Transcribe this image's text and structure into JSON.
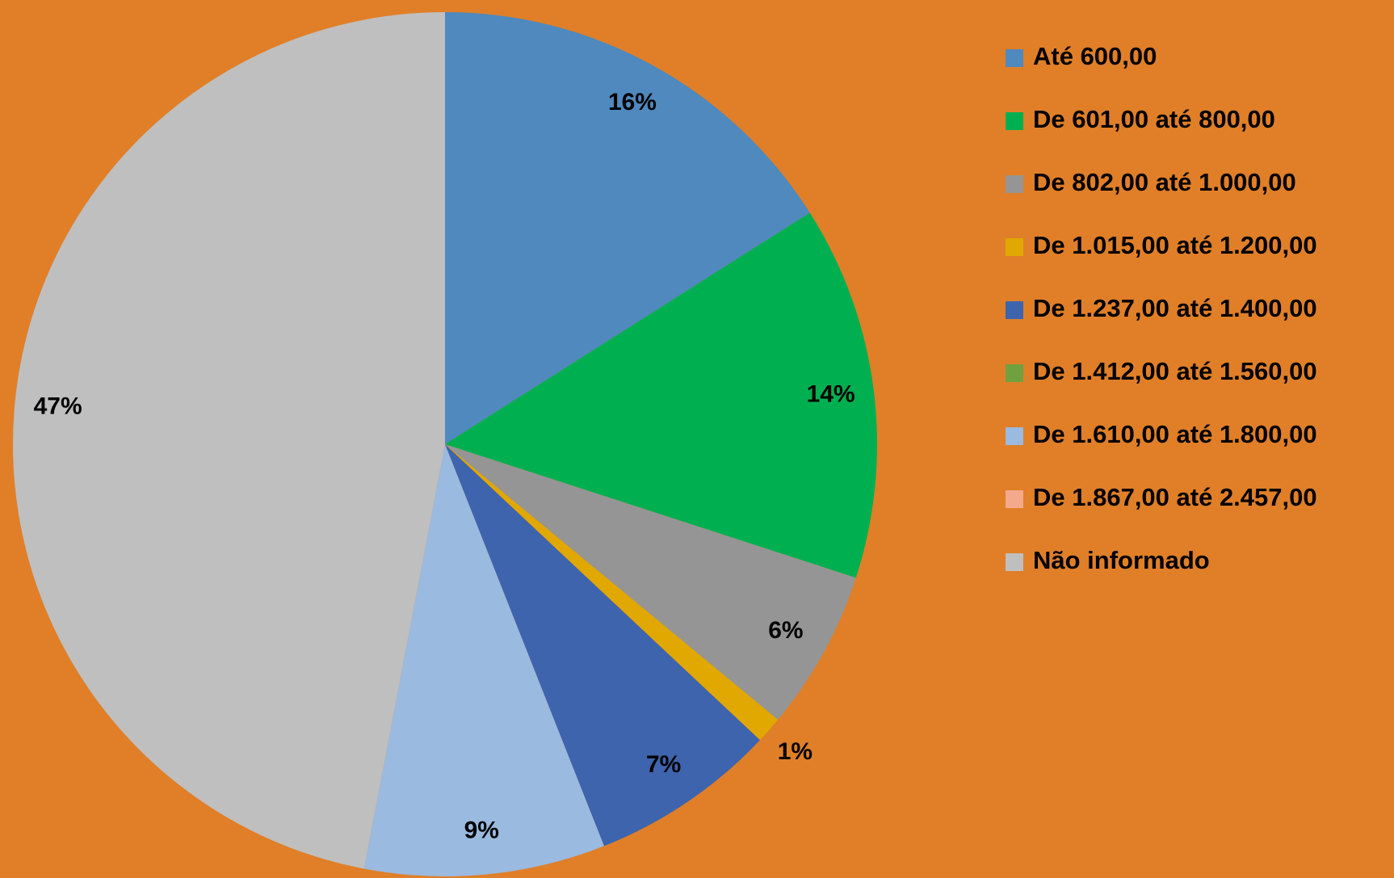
{
  "chart_data": {
    "type": "pie",
    "categories": [
      "Até 600,00",
      "De 601,00 até 800,00",
      "De 802,00 até 1.000,00",
      "De 1.015,00 até 1.200,00",
      "De 1.237,00 até 1.400,00",
      "De 1.412,00 até 1.560,00",
      "De 1.610,00 até 1.800,00",
      "De 1.867,00 até 2.457,00",
      "Não informado"
    ],
    "values": [
      16,
      14,
      6,
      1,
      7,
      0,
      9,
      0,
      47
    ],
    "value_labels": [
      "16%",
      "14%",
      "6%",
      "1%",
      "7%",
      null,
      "9%",
      null,
      "47%"
    ],
    "colors": [
      "#4f89bd",
      "#00b050",
      "#959595",
      "#e0a800",
      "#3d64ad",
      "#70a040",
      "#9abae0",
      "#f4a98c",
      "#bfbfbf"
    ],
    "legend": "right"
  }
}
